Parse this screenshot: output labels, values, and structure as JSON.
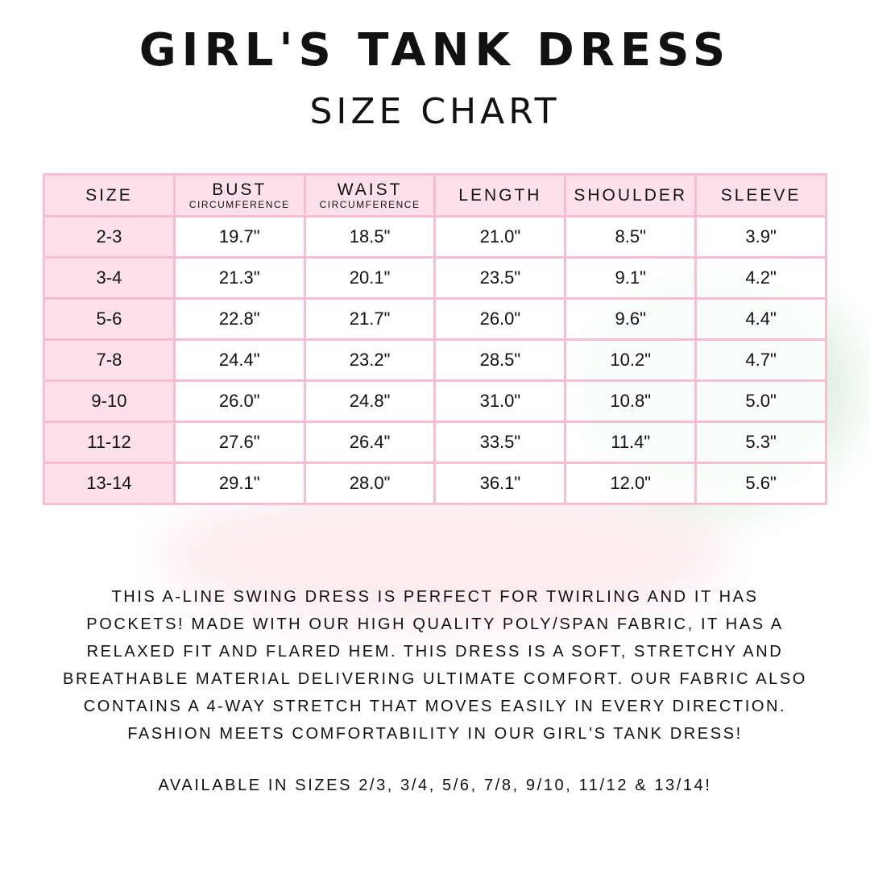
{
  "title": "Girl's Tank Dress",
  "subtitle": "Size Chart",
  "table": {
    "headers": [
      {
        "main": "Size",
        "sub": ""
      },
      {
        "main": "Bust",
        "sub": "Circumference"
      },
      {
        "main": "Waist",
        "sub": "Circumference"
      },
      {
        "main": "Length",
        "sub": ""
      },
      {
        "main": "Shoulder",
        "sub": ""
      },
      {
        "main": "Sleeve",
        "sub": ""
      }
    ],
    "rows": [
      [
        "2-3",
        "19.7\"",
        "18.5\"",
        "21.0\"",
        "8.5\"",
        "3.9\""
      ],
      [
        "3-4",
        "21.3\"",
        "20.1\"",
        "23.5\"",
        "9.1\"",
        "4.2\""
      ],
      [
        "5-6",
        "22.8\"",
        "21.7\"",
        "26.0\"",
        "9.6\"",
        "4.4\""
      ],
      [
        "7-8",
        "24.4\"",
        "23.2\"",
        "28.5\"",
        "10.2\"",
        "4.7\""
      ],
      [
        "9-10",
        "26.0\"",
        "24.8\"",
        "31.0\"",
        "10.8\"",
        "5.0\""
      ],
      [
        "11-12",
        "27.6\"",
        "26.4\"",
        "33.5\"",
        "11.4\"",
        "5.3\""
      ],
      [
        "13-14",
        "29.1\"",
        "28.0\"",
        "36.1\"",
        "12.0\"",
        "5.6\""
      ]
    ]
  },
  "description_lines": [
    "This A-line swing dress is perfect for twirling and it has",
    "pockets! Made with our high quality poly/span fabric, it has a",
    "relaxed fit and flared hem. This dress is a soft, stretchy and",
    "breathable material delivering ultimate comfort. Our fabric also",
    "contains a 4-way stretch that moves easily in every direction.",
    "Fashion meets comfortability in our girl's tank dress!"
  ],
  "availability": "Available in sizes 2/3, 3/4, 5/6, 7/8, 9/10, 11/12 & 13/14!",
  "colors": {
    "pink_fill": "#fde0ea",
    "pink_border": "#f7bdd0",
    "text": "#111111"
  }
}
